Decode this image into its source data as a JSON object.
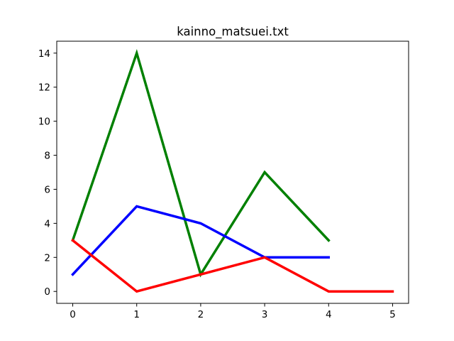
{
  "chart_data": {
    "type": "line",
    "title": "kainno_matsuei.txt",
    "xlabel": "",
    "ylabel": "",
    "xlim": [
      -0.25,
      5.25
    ],
    "ylim": [
      -0.7,
      14.7
    ],
    "xticks": [
      0,
      1,
      2,
      3,
      4,
      5
    ],
    "yticks": [
      0,
      2,
      4,
      6,
      8,
      10,
      12,
      14
    ],
    "grid": false,
    "legend": "none",
    "series": [
      {
        "color": "#008000",
        "x": [
          0,
          1,
          2,
          3,
          4
        ],
        "y": [
          3,
          14,
          1,
          7,
          3
        ]
      },
      {
        "color": "#0000ff",
        "x": [
          0,
          1,
          2,
          3,
          4
        ],
        "y": [
          1,
          5,
          4,
          2,
          2
        ]
      },
      {
        "color": "#ff0000",
        "x": [
          0,
          1,
          2,
          3,
          4,
          5
        ],
        "y": [
          3,
          0,
          1,
          2,
          0,
          0
        ]
      }
    ]
  }
}
